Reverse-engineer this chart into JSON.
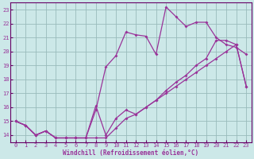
{
  "xlabel": "Windchill (Refroidissement éolien,°C)",
  "bg_color": "#cce8e8",
  "grid_color": "#99bbbb",
  "line_color": "#993399",
  "spine_color": "#660066",
  "xlim": [
    -0.5,
    23.5
  ],
  "ylim": [
    13.5,
    23.5
  ],
  "xticks": [
    0,
    1,
    2,
    3,
    4,
    5,
    6,
    7,
    8,
    9,
    10,
    11,
    12,
    13,
    14,
    15,
    16,
    17,
    18,
    19,
    20,
    21,
    22,
    23
  ],
  "yticks": [
    14,
    15,
    16,
    17,
    18,
    19,
    20,
    21,
    22,
    23
  ],
  "line1_x": [
    0,
    1,
    2,
    3,
    4,
    5,
    6,
    7,
    8,
    9,
    10,
    11,
    12,
    13,
    14,
    15,
    16,
    17,
    18,
    19,
    20,
    21,
    22,
    23
  ],
  "line1_y": [
    15.0,
    14.7,
    14.0,
    14.3,
    13.8,
    13.8,
    13.8,
    13.8,
    13.8,
    13.8,
    14.5,
    15.2,
    15.5,
    16.0,
    16.5,
    17.0,
    17.5,
    18.0,
    18.5,
    19.0,
    19.5,
    20.0,
    20.5,
    17.5
  ],
  "line2_x": [
    0,
    1,
    2,
    3,
    4,
    5,
    6,
    7,
    8,
    9,
    10,
    11,
    12,
    13,
    14,
    15,
    16,
    17,
    18,
    19,
    20,
    21,
    22,
    23
  ],
  "line2_y": [
    15.0,
    14.7,
    14.0,
    14.3,
    13.8,
    13.8,
    13.8,
    13.8,
    15.8,
    18.9,
    19.7,
    21.4,
    21.2,
    21.1,
    19.8,
    23.2,
    22.5,
    21.8,
    22.1,
    22.1,
    21.0,
    20.5,
    20.3,
    19.8
  ],
  "line3_x": [
    0,
    1,
    2,
    3,
    4,
    5,
    6,
    7,
    8,
    9,
    10,
    11,
    12,
    13,
    14,
    15,
    16,
    17,
    18,
    19,
    20,
    21,
    22,
    23
  ],
  "line3_y": [
    15.0,
    14.7,
    14.0,
    14.3,
    13.8,
    13.8,
    13.8,
    13.8,
    16.1,
    14.0,
    15.2,
    15.8,
    15.5,
    16.0,
    16.5,
    17.2,
    17.8,
    18.3,
    19.0,
    19.5,
    20.8,
    20.8,
    20.5,
    17.5
  ]
}
